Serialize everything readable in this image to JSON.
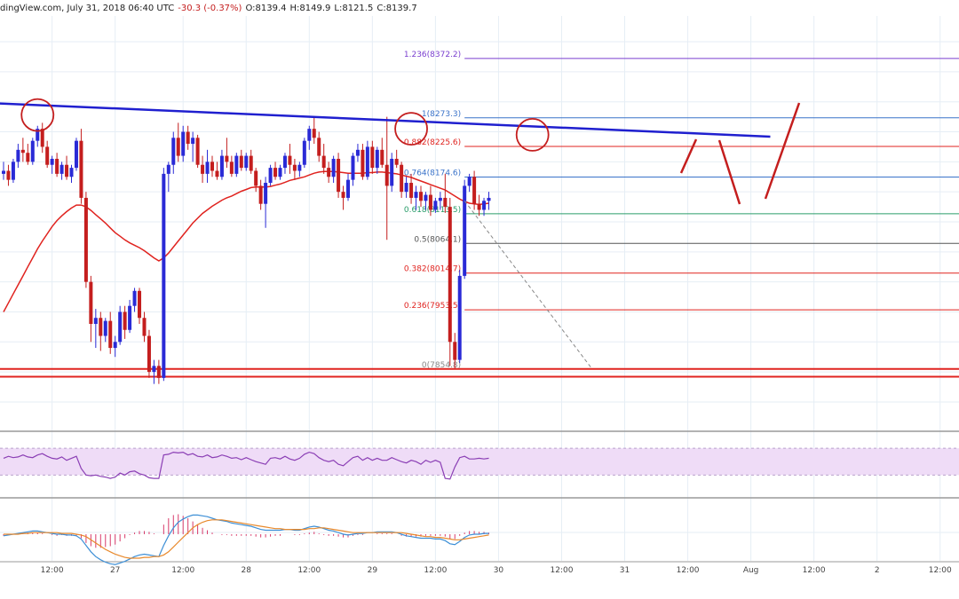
{
  "header": {
    "source": "dingView.com, July 31, 2018 06:40 UTC",
    "change": "-30.3 (-0.37%)",
    "ohlc": {
      "o": "O:8139.4",
      "h": "H:8149.9",
      "l": "L:8121.5",
      "c": "C:8139.7"
    }
  },
  "colors": {
    "up": "#2a2ad6",
    "down": "#c41e1e",
    "ma": "#e0231f",
    "trendline": "#1f1fcf",
    "fib": "#e0231f",
    "fib_top": "#7a3fcf",
    "fib_blue": "#3a73c9",
    "rsi_line": "#8b3fb5",
    "rsi_band": "#efdcf7",
    "macd_line": "#3d8fd6",
    "macd_signal": "#e8892c",
    "macd_hist": "#d83a6a",
    "grid": "#e6eef5"
  },
  "chart_data": {
    "type": "candlestick",
    "symbol_price_last": 8139.7,
    "ylim": [
      7760,
      8440
    ],
    "x_tick_labels": [
      {
        "label": "12:00",
        "bar": 10
      },
      {
        "label": "27",
        "bar": 23
      },
      {
        "label": "12:00",
        "bar": 37
      },
      {
        "label": "28",
        "bar": 50
      },
      {
        "label": "12:00",
        "bar": 63
      },
      {
        "label": "29",
        "bar": 76
      },
      {
        "label": "12:00",
        "bar": 89
      },
      {
        "label": "30",
        "bar": 102
      },
      {
        "label": "12:00",
        "bar": 115
      },
      {
        "label": "31",
        "bar": 128
      },
      {
        "label": "12:00",
        "bar": 141
      },
      {
        "label": "Aug",
        "bar": 154
      },
      {
        "label": "12:00",
        "bar": 167
      },
      {
        "label": "2",
        "bar": 180
      },
      {
        "label": "12:00",
        "bar": 193
      }
    ],
    "candles_ohlc": [
      [
        8180,
        8200,
        8170,
        8185
      ],
      [
        8185,
        8195,
        8160,
        8170
      ],
      [
        8170,
        8205,
        8165,
        8200
      ],
      [
        8200,
        8230,
        8190,
        8220
      ],
      [
        8220,
        8240,
        8200,
        8215
      ],
      [
        8215,
        8230,
        8195,
        8200
      ],
      [
        8200,
        8240,
        8195,
        8235
      ],
      [
        8235,
        8260,
        8225,
        8255
      ],
      [
        8255,
        8265,
        8215,
        8225
      ],
      [
        8225,
        8235,
        8190,
        8195
      ],
      [
        8195,
        8210,
        8180,
        8205
      ],
      [
        8205,
        8215,
        8175,
        8180
      ],
      [
        8180,
        8200,
        8170,
        8195
      ],
      [
        8195,
        8210,
        8170,
        8175
      ],
      [
        8175,
        8195,
        8165,
        8190
      ],
      [
        8190,
        8240,
        8185,
        8235
      ],
      [
        8235,
        8255,
        8130,
        8140
      ],
      [
        8140,
        8150,
        7990,
        8000
      ],
      [
        8000,
        8010,
        7900,
        7930
      ],
      [
        7930,
        7955,
        7890,
        7940
      ],
      [
        7940,
        7950,
        7885,
        7910
      ],
      [
        7910,
        7940,
        7900,
        7935
      ],
      [
        7935,
        7950,
        7880,
        7890
      ],
      [
        7890,
        7910,
        7875,
        7900
      ],
      [
        7900,
        7960,
        7895,
        7950
      ],
      [
        7950,
        7960,
        7905,
        7920
      ],
      [
        7920,
        7970,
        7915,
        7960
      ],
      [
        7960,
        7990,
        7950,
        7985
      ],
      [
        7985,
        7990,
        7930,
        7940
      ],
      [
        7940,
        7950,
        7900,
        7910
      ],
      [
        7910,
        7920,
        7840,
        7850
      ],
      [
        7850,
        7870,
        7830,
        7860
      ],
      [
        7860,
        7870,
        7830,
        7840
      ],
      [
        7840,
        8190,
        7835,
        8180
      ],
      [
        8180,
        8200,
        8150,
        8195
      ],
      [
        8195,
        8250,
        8180,
        8240
      ],
      [
        8240,
        8265,
        8200,
        8210
      ],
      [
        8210,
        8260,
        8200,
        8250
      ],
      [
        8250,
        8260,
        8220,
        8230
      ],
      [
        8230,
        8250,
        8200,
        8240
      ],
      [
        8240,
        8245,
        8190,
        8195
      ],
      [
        8195,
        8210,
        8165,
        8180
      ],
      [
        8180,
        8220,
        8165,
        8200
      ],
      [
        8200,
        8210,
        8175,
        8185
      ],
      [
        8185,
        8200,
        8170,
        8175
      ],
      [
        8175,
        8220,
        8170,
        8210
      ],
      [
        8210,
        8240,
        8190,
        8200
      ],
      [
        8200,
        8210,
        8175,
        8180
      ],
      [
        8180,
        8215,
        8175,
        8210
      ],
      [
        8210,
        8220,
        8185,
        8190
      ],
      [
        8190,
        8215,
        8185,
        8210
      ],
      [
        8210,
        8220,
        8180,
        8185
      ],
      [
        8185,
        8190,
        8150,
        8160
      ],
      [
        8160,
        8170,
        8120,
        8130
      ],
      [
        8130,
        8175,
        8090,
        8165
      ],
      [
        8165,
        8195,
        8160,
        8190
      ],
      [
        8190,
        8200,
        8170,
        8175
      ],
      [
        8175,
        8195,
        8170,
        8190
      ],
      [
        8190,
        8215,
        8180,
        8210
      ],
      [
        8210,
        8230,
        8180,
        8195
      ],
      [
        8195,
        8205,
        8170,
        8185
      ],
      [
        8185,
        8200,
        8175,
        8195
      ],
      [
        8195,
        8240,
        8190,
        8235
      ],
      [
        8235,
        8260,
        8220,
        8255
      ],
      [
        8255,
        8275,
        8230,
        8240
      ],
      [
        8240,
        8250,
        8200,
        8210
      ],
      [
        8210,
        8230,
        8180,
        8190
      ],
      [
        8190,
        8200,
        8165,
        8175
      ],
      [
        8175,
        8210,
        8165,
        8205
      ],
      [
        8205,
        8215,
        8140,
        8150
      ],
      [
        8150,
        8160,
        8120,
        8140
      ],
      [
        8140,
        8180,
        8135,
        8170
      ],
      [
        8170,
        8215,
        8160,
        8210
      ],
      [
        8210,
        8230,
        8200,
        8220
      ],
      [
        8220,
        8230,
        8170,
        8175
      ],
      [
        8175,
        8235,
        8170,
        8225
      ],
      [
        8225,
        8235,
        8180,
        8190
      ],
      [
        8190,
        8225,
        8180,
        8220
      ],
      [
        8220,
        8240,
        8190,
        8195
      ],
      [
        8195,
        8275,
        8070,
        8160
      ],
      [
        8160,
        8215,
        8150,
        8205
      ],
      [
        8205,
        8220,
        8190,
        8195
      ],
      [
        8195,
        8200,
        8140,
        8150
      ],
      [
        8150,
        8175,
        8140,
        8165
      ],
      [
        8165,
        8180,
        8130,
        8140
      ],
      [
        8140,
        8160,
        8120,
        8150
      ],
      [
        8150,
        8160,
        8125,
        8135
      ],
      [
        8135,
        8150,
        8120,
        8145
      ],
      [
        8145,
        8160,
        8110,
        8120
      ],
      [
        8120,
        8140,
        8115,
        8135
      ],
      [
        8135,
        8150,
        8120,
        8140
      ],
      [
        8140,
        8180,
        8115,
        8125
      ],
      [
        8125,
        8140,
        7860,
        7900
      ],
      [
        7900,
        7915,
        7855,
        7870
      ],
      [
        7870,
        8020,
        7865,
        8010
      ],
      [
        8010,
        8170,
        8005,
        8160
      ],
      [
        8160,
        8180,
        8150,
        8175
      ],
      [
        8175,
        8185,
        8120,
        8130
      ],
      [
        8130,
        8145,
        8110,
        8120
      ],
      [
        8120,
        8140,
        8110,
        8135
      ],
      [
        8135,
        8150,
        8120,
        8140
      ]
    ],
    "fibonacci_levels": [
      {
        "ratio": "1.236",
        "label": "1.236(8372.2)",
        "value": 8372.2
      },
      {
        "ratio": "1",
        "label": "1(8273.3)",
        "value": 8273.3
      },
      {
        "ratio": "0.882",
        "label": "0.882(8225.6)",
        "value": 8225.6
      },
      {
        "ratio": "0.764",
        "label": "0.764(8174.6)",
        "value": 8174.6
      },
      {
        "ratio": "0.618",
        "label": "0.618(8113.5)",
        "value": 8113.5
      },
      {
        "ratio": "0.5",
        "label": "0.5(8064.1)",
        "value": 8064.1
      },
      {
        "ratio": "0.382",
        "label": "0.382(8014.7)",
        "value": 8014.7
      },
      {
        "ratio": "0.236",
        "label": "0.236(7953.5)",
        "value": 7953.5
      },
      {
        "ratio": "0",
        "label": "0(7854.8)",
        "value": 7854.8
      }
    ],
    "support_lines": [
      7855,
      7842
    ],
    "trendline": {
      "from_bar": -3,
      "from_value": 8298,
      "to_bar": 158,
      "to_value": 8242
    },
    "ma_values": [
      7950,
      7965,
      7980,
      7995,
      8010,
      8025,
      8040,
      8055,
      8068,
      8080,
      8092,
      8102,
      8110,
      8117,
      8123,
      8128,
      8128,
      8125,
      8119,
      8112,
      8105,
      8098,
      8090,
      8082,
      8076,
      8070,
      8065,
      8061,
      8057,
      8052,
      8046,
      8040,
      8035,
      8040,
      8048,
      8058,
      8068,
      8078,
      8088,
      8098,
      8106,
      8114,
      8120,
      8126,
      8131,
      8136,
      8140,
      8143,
      8147,
      8151,
      8154,
      8157,
      8158,
      8158,
      8158,
      8159,
      8161,
      8163,
      8166,
      8169,
      8171,
      8173,
      8175,
      8178,
      8181,
      8183,
      8184,
      8184,
      8184,
      8183,
      8182,
      8181,
      8181,
      8181,
      8181,
      8182,
      8182,
      8183,
      8183,
      8182,
      8181,
      8180,
      8178,
      8176,
      8174,
      8171,
      8168,
      8165,
      8162,
      8159,
      8156,
      8153,
      8148,
      8143,
      8138,
      8134,
      8131,
      8130,
      8129,
      8130,
      8131
    ],
    "rsi_values": [
      55,
      58,
      56,
      57,
      60,
      57,
      56,
      60,
      62,
      58,
      55,
      54,
      57,
      52,
      55,
      58,
      40,
      30,
      29,
      30,
      28,
      27,
      25,
      27,
      33,
      30,
      35,
      36,
      32,
      30,
      26,
      25,
      25,
      60,
      61,
      64,
      63,
      64,
      60,
      62,
      58,
      57,
      60,
      56,
      57,
      60,
      58,
      55,
      56,
      53,
      56,
      53,
      50,
      48,
      46,
      55,
      56,
      54,
      58,
      54,
      52,
      55,
      61,
      64,
      62,
      56,
      52,
      50,
      52,
      46,
      44,
      50,
      56,
      58,
      52,
      56,
      52,
      55,
      52,
      52,
      56,
      53,
      50,
      48,
      52,
      50,
      46,
      52,
      49,
      52,
      49,
      25,
      24,
      42,
      56,
      58,
      54,
      54,
      55,
      54,
      55
    ],
    "macd_line": [
      -2,
      -1,
      0,
      1,
      2,
      3,
      4,
      4,
      3,
      2,
      1,
      0,
      0,
      -1,
      -1,
      -2,
      -6,
      -14,
      -22,
      -28,
      -32,
      -35,
      -37,
      -38,
      -36,
      -34,
      -31,
      -28,
      -26,
      -25,
      -26,
      -27,
      -28,
      -14,
      -2,
      8,
      15,
      19,
      22,
      24,
      24,
      23,
      22,
      20,
      18,
      17,
      16,
      14,
      13,
      12,
      11,
      10,
      8,
      6,
      5,
      5,
      5,
      5,
      6,
      6,
      5,
      5,
      7,
      9,
      10,
      9,
      7,
      5,
      4,
      2,
      0,
      -1,
      0,
      1,
      1,
      2,
      2,
      3,
      3,
      3,
      3,
      2,
      0,
      -2,
      -3,
      -4,
      -5,
      -5,
      -5,
      -6,
      -6,
      -8,
      -12,
      -13,
      -9,
      -4,
      -1,
      0,
      0,
      1,
      1
    ],
    "macd_signal": [
      0,
      0,
      0,
      0,
      1,
      1,
      2,
      2,
      2,
      2,
      2,
      2,
      1,
      1,
      1,
      0,
      -1,
      -3,
      -7,
      -11,
      -15,
      -19,
      -22,
      -25,
      -27,
      -29,
      -30,
      -30,
      -30,
      -29,
      -29,
      -28,
      -28,
      -26,
      -22,
      -16,
      -10,
      -4,
      2,
      8,
      12,
      15,
      17,
      18,
      18,
      18,
      17,
      16,
      15,
      14,
      13,
      12,
      11,
      10,
      9,
      8,
      7,
      7,
      6,
      6,
      6,
      6,
      6,
      7,
      7,
      8,
      8,
      7,
      6,
      5,
      4,
      3,
      2,
      2,
      2,
      2,
      2,
      2,
      2,
      2,
      2,
      2,
      2,
      1,
      0,
      -1,
      -2,
      -3,
      -3,
      -4,
      -4,
      -5,
      -6,
      -7,
      -7,
      -6,
      -5,
      -4,
      -3,
      -2,
      -1
    ]
  }
}
